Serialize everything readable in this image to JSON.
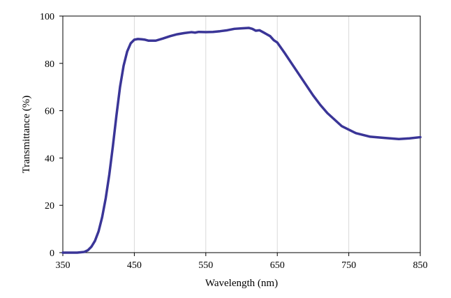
{
  "chart_data": {
    "type": "line",
    "title": "",
    "xlabel": "Wavelength (nm)",
    "ylabel": "Transmittance (%)",
    "xlim": [
      350,
      850
    ],
    "ylim": [
      0,
      100
    ],
    "x_ticks": [
      "350",
      "450",
      "550",
      "650",
      "750",
      "850"
    ],
    "y_ticks": [
      "0",
      "20",
      "40",
      "60",
      "80",
      "100"
    ],
    "grid": {
      "vertical": true,
      "horizontal": false
    },
    "legend": "none",
    "colors": {
      "line": "#3a3597",
      "grid": "#d9d9d9",
      "axis": "#000000"
    },
    "series": [
      {
        "x": [
          350,
          370,
          380,
          385,
          390,
          395,
          400,
          405,
          410,
          415,
          420,
          425,
          430,
          435,
          440,
          445,
          450,
          455,
          460,
          465,
          470,
          480,
          490,
          500,
          510,
          520,
          530,
          535,
          540,
          550,
          560,
          570,
          580,
          590,
          600,
          610,
          615,
          620,
          625,
          630,
          640,
          645,
          650,
          660,
          670,
          680,
          690,
          700,
          710,
          720,
          740,
          760,
          780,
          800,
          820,
          835,
          850
        ],
        "y": [
          0,
          0,
          0.3,
          1,
          2.5,
          5,
          9,
          15,
          23,
          33,
          45,
          58,
          70,
          79,
          85,
          88.5,
          90,
          90.3,
          90.2,
          90,
          89.6,
          89.6,
          90.5,
          91.5,
          92.3,
          92.8,
          93.2,
          93,
          93.3,
          93.2,
          93.3,
          93.6,
          94,
          94.6,
          94.8,
          95,
          94.6,
          93.8,
          94,
          93.2,
          91.5,
          89.8,
          88.8,
          84.5,
          80,
          75.5,
          71,
          66.5,
          62.5,
          59,
          53.5,
          50.5,
          49,
          48.5,
          48,
          48.3,
          48.8
        ]
      }
    ]
  }
}
